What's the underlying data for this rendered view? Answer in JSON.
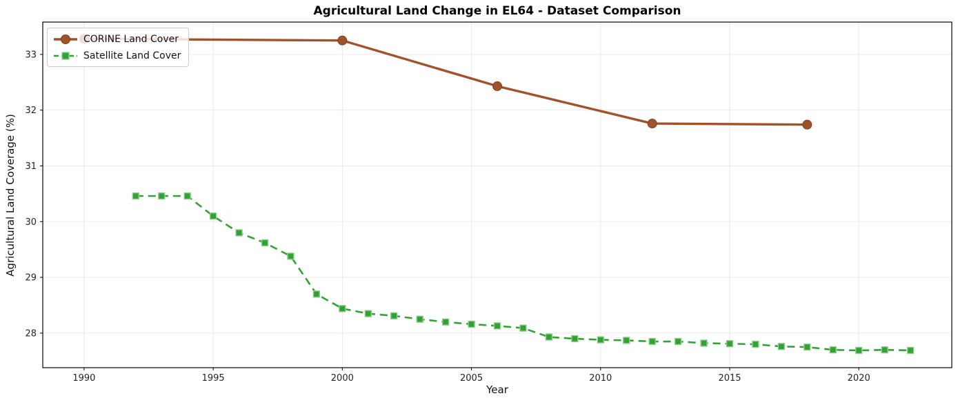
{
  "chart_data": {
    "type": "line",
    "title": "Agricultural Land Change in EL64 - Dataset Comparison",
    "xlabel": "Year",
    "ylabel": "Agricultural Land Coverage (%)",
    "xlim": [
      1988.4,
      2023.6
    ],
    "ylim": [
      27.38,
      33.58
    ],
    "x_ticks": [
      1990,
      1995,
      2000,
      2005,
      2010,
      2015,
      2020
    ],
    "y_ticks": [
      28,
      29,
      30,
      31,
      32,
      33
    ],
    "grid": true,
    "legend_position": "upper left",
    "background_color": "#ffffff",
    "grid_color": "#d9d9d9",
    "spine_color": "#000000",
    "series": [
      {
        "name": "CORINE Land Cover",
        "color": "#A0522D",
        "marker_edge": "#7e3f20",
        "line_style": "solid",
        "marker": "circle",
        "points": [
          [
            1990,
            33.28
          ],
          [
            2000,
            33.25
          ],
          [
            2006,
            32.43
          ],
          [
            2012,
            31.76
          ],
          [
            2018,
            31.74
          ]
        ]
      },
      {
        "name": "Satellite Land Cover",
        "color": "#35a035",
        "marker_edge": "#8fd18f",
        "line_style": "dashed",
        "marker": "square",
        "points": [
          [
            1992,
            30.46
          ],
          [
            1993,
            30.46
          ],
          [
            1994,
            30.46
          ],
          [
            1995,
            30.1
          ],
          [
            1996,
            29.8
          ],
          [
            1997,
            29.62
          ],
          [
            1998,
            29.38
          ],
          [
            1999,
            28.7
          ],
          [
            2000,
            28.44
          ],
          [
            2001,
            28.35
          ],
          [
            2002,
            28.31
          ],
          [
            2003,
            28.25
          ],
          [
            2004,
            28.2
          ],
          [
            2005,
            28.16
          ],
          [
            2006,
            28.13
          ],
          [
            2007,
            28.09
          ],
          [
            2008,
            27.93
          ],
          [
            2009,
            27.9
          ],
          [
            2010,
            27.88
          ],
          [
            2011,
            27.87
          ],
          [
            2012,
            27.85
          ],
          [
            2013,
            27.85
          ],
          [
            2014,
            27.82
          ],
          [
            2015,
            27.81
          ],
          [
            2016,
            27.8
          ],
          [
            2017,
            27.76
          ],
          [
            2018,
            27.75
          ],
          [
            2019,
            27.7
          ],
          [
            2020,
            27.69
          ],
          [
            2021,
            27.7
          ],
          [
            2022,
            27.69
          ]
        ]
      }
    ]
  }
}
